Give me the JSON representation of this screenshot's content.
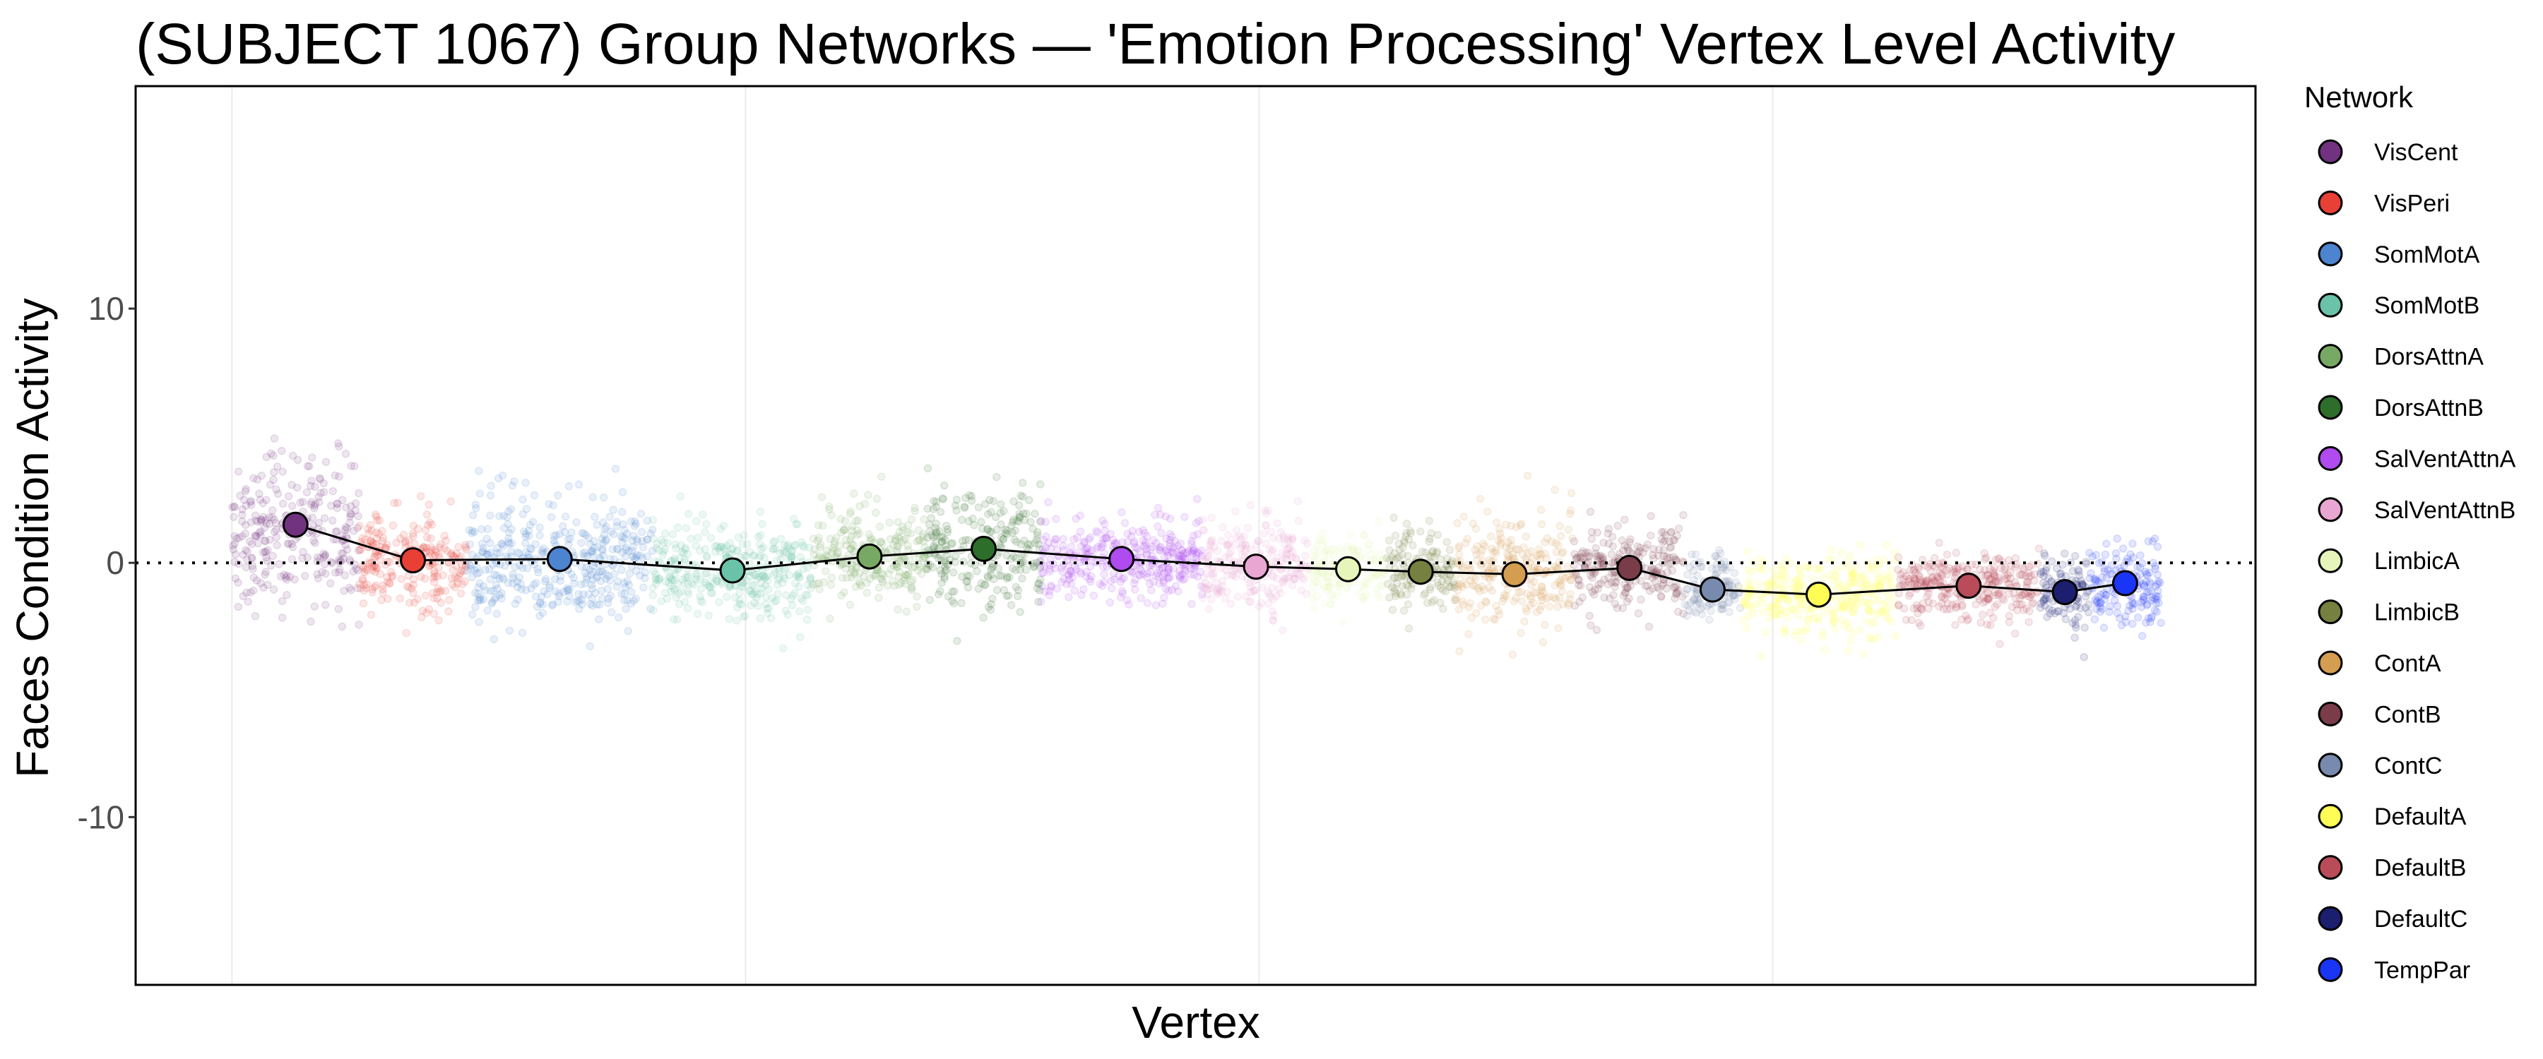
{
  "chart_data": {
    "type": "scatter",
    "title": "(SUBJECT 1067) Group Networks — 'Emotion Processing' Vertex Level Activity",
    "xlabel": "Vertex",
    "ylabel": "Faces Condition Activity",
    "ylim": [
      -16.6,
      18.75
    ],
    "xlim": [
      -3750,
      78800
    ],
    "yticks": [
      10,
      0,
      -10
    ],
    "ytick_labels": [
      "10",
      "0",
      "-10"
    ],
    "xgrid": [
      0,
      20000,
      40000,
      60000
    ],
    "reference_line_y": 0,
    "legend": {
      "title": "Network",
      "placement": "right"
    },
    "series": [
      {
        "name": "VisCent",
        "color": "#71327f",
        "vertex_range": [
          0,
          4953
        ],
        "mean": 1.5,
        "spread": 2.2
      },
      {
        "name": "VisPeri",
        "color": "#e94036",
        "vertex_range": [
          4953,
          9144
        ],
        "mean": 0.1,
        "spread": 1.3
      },
      {
        "name": "SomMotA",
        "color": "#4d84cf",
        "vertex_range": [
          9144,
          16383
        ],
        "mean": 0.15,
        "spread": 1.7
      },
      {
        "name": "SomMotB",
        "color": "#6ac3a8",
        "vertex_range": [
          16383,
          22606
        ],
        "mean": -0.3,
        "spread": 1.3
      },
      {
        "name": "DorsAttnA",
        "color": "#78a964",
        "vertex_range": [
          22606,
          27051
        ],
        "mean": 0.25,
        "spread": 1.3
      },
      {
        "name": "DorsAttnB",
        "color": "#2e6e2b",
        "vertex_range": [
          27051,
          31496
        ],
        "mean": 0.55,
        "spread": 1.6
      },
      {
        "name": "SalVentAttnA",
        "color": "#b04bf0",
        "vertex_range": [
          31496,
          37783
        ],
        "mean": 0.15,
        "spread": 1.1
      },
      {
        "name": "SalVentAttnB",
        "color": "#eaa6d3",
        "vertex_range": [
          37783,
          41974
        ],
        "mean": -0.15,
        "spread": 1.1
      },
      {
        "name": "LimbicA",
        "color": "#e6f5b9",
        "vertex_range": [
          41974,
          44959
        ],
        "mean": -0.25,
        "spread": 0.9
      },
      {
        "name": "LimbicB",
        "color": "#76803f",
        "vertex_range": [
          44959,
          47626
        ],
        "mean": -0.35,
        "spread": 1.0
      },
      {
        "name": "ContA",
        "color": "#d59d4f",
        "vertex_range": [
          47626,
          52261
        ],
        "mean": -0.45,
        "spread": 1.4
      },
      {
        "name": "ContB",
        "color": "#7b3c4a",
        "vertex_range": [
          52261,
          56579
        ],
        "mean": -0.2,
        "spread": 1.1
      },
      {
        "name": "ContC",
        "color": "#788aad",
        "vertex_range": [
          56579,
          58738
        ],
        "mean": -1.05,
        "spread": 0.9
      },
      {
        "name": "DefaultA",
        "color": "#fdfd55",
        "vertex_range": [
          58738,
          64834
        ],
        "mean": -1.25,
        "spread": 1.1
      },
      {
        "name": "DefaultB",
        "color": "#b94c58",
        "vertex_range": [
          64834,
          70422
        ],
        "mean": -0.9,
        "spread": 0.9
      },
      {
        "name": "DefaultC",
        "color": "#1c1e70",
        "vertex_range": [
          70422,
          72327
        ],
        "mean": -1.15,
        "spread": 1.0
      },
      {
        "name": "TempPar",
        "color": "#1a35f5",
        "vertex_range": [
          72327,
          75121
        ],
        "mean": -0.8,
        "spread": 1.1
      }
    ]
  }
}
